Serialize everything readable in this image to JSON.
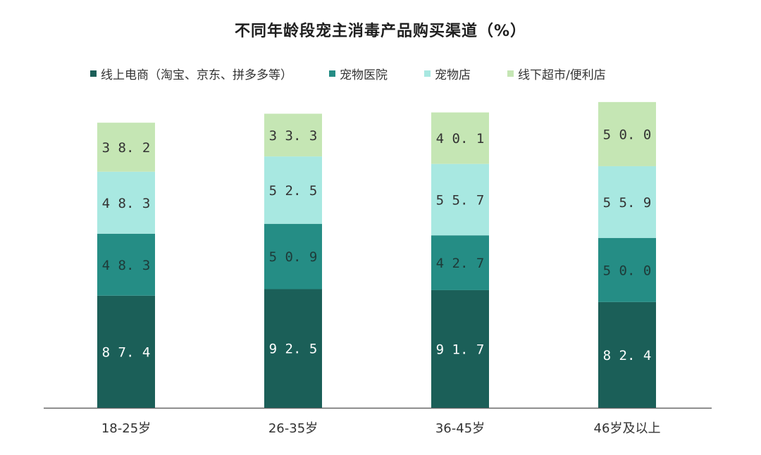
{
  "chart_data": {
    "type": "bar",
    "stacked": true,
    "title": "不同年龄段宠主消毒产品购买渠道（%）",
    "categories": [
      "18-25岁",
      "26-35岁",
      "36-45岁",
      "46岁及以上"
    ],
    "series": [
      {
        "name": "线上电商（淘宝、京东、拼多多等）",
        "values": [
          87.4,
          92.5,
          91.7,
          82.4
        ],
        "color": "#1b5f58",
        "label_color": "#ffffff"
      },
      {
        "name": "宠物医院",
        "values": [
          48.3,
          50.9,
          42.7,
          50.0
        ],
        "color": "#258d85",
        "label_color": "#1e3a38"
      },
      {
        "name": "宠物店",
        "values": [
          48.3,
          52.5,
          55.7,
          55.9
        ],
        "color": "#a8e8e1",
        "label_color": "#333333"
      },
      {
        "name": "线下超市/便利店",
        "values": [
          38.2,
          33.3,
          40.1,
          50.0
        ],
        "color": "#c5e6b4",
        "label_color": "#333333"
      }
    ],
    "legend_position": "top",
    "grid": false,
    "axis_line_color": "#666666"
  }
}
